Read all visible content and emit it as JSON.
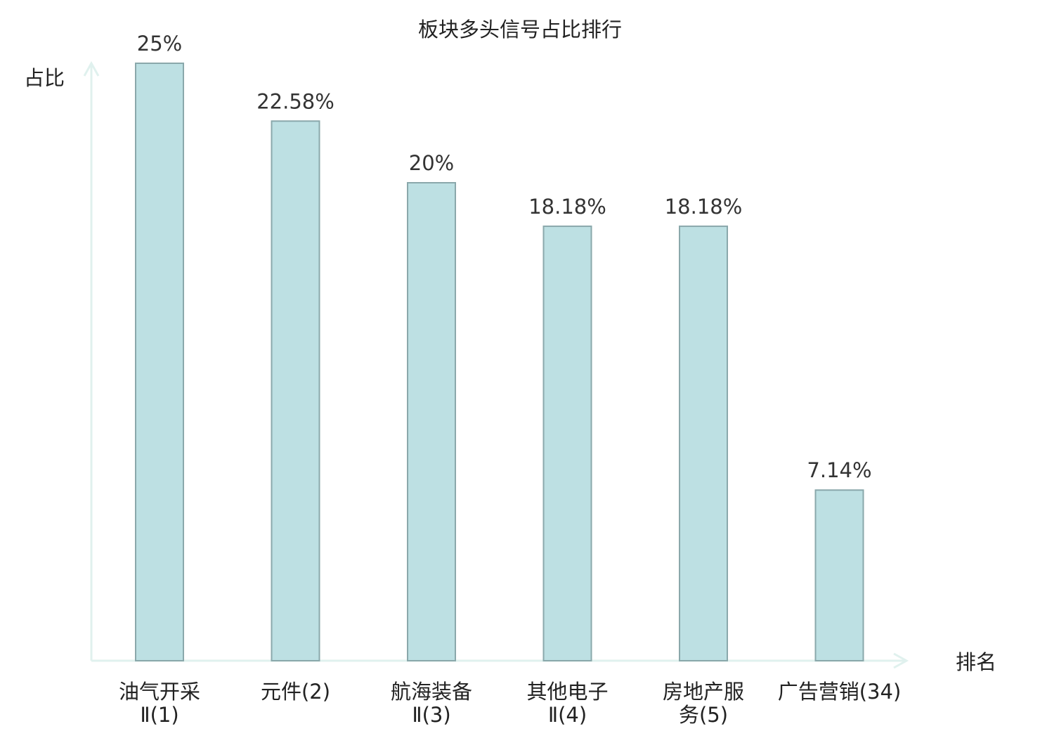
{
  "chart_data": {
    "type": "bar",
    "title": "板块多头信号占比排行",
    "xlabel": "排名",
    "ylabel": "占比",
    "categories": [
      [
        "油气开采",
        "Ⅱ(1)"
      ],
      [
        "元件(2)"
      ],
      [
        "航海装备",
        "Ⅱ(3)"
      ],
      [
        "其他电子",
        "Ⅱ(4)"
      ],
      [
        "房地产服",
        "务(5)"
      ],
      [
        "广告营销(34)"
      ]
    ],
    "values": [
      25,
      22.58,
      20,
      18.18,
      18.18,
      7.14
    ],
    "value_labels": [
      "25%",
      "22.58%",
      "20%",
      "18.18%",
      "18.18%",
      "7.14%"
    ],
    "highlight_index": 5,
    "ylim": [
      0,
      25
    ],
    "grid": false,
    "colors": {
      "bar_fill": "#bde0e3",
      "bar_stroke": "#8aa8ab",
      "axis": "#e0f1ee",
      "text": "#222222",
      "highlight_text": "#e0201b"
    }
  }
}
